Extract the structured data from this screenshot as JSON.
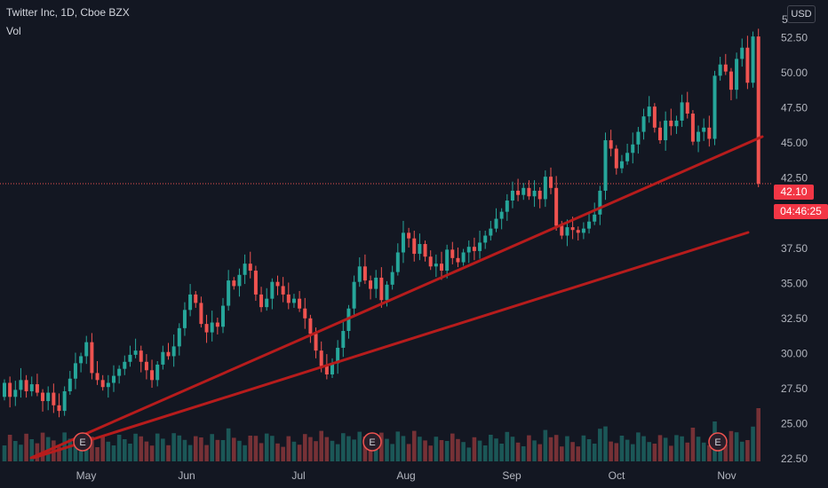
{
  "header": {
    "title": "Twitter Inc, 1D, Cboe BZX",
    "volume_label": "Vol"
  },
  "price_scale": {
    "currency": "USD",
    "top_partial_label": "5",
    "last_price": "42.10",
    "countdown": "04:46:25"
  },
  "colors": {
    "up": "#26a69a",
    "down": "#ef5350",
    "trendline": "#b71c1c",
    "price_tag": "#f23645"
  },
  "events": [
    {
      "label": "E",
      "date": "2021-04-29"
    },
    {
      "label": "E",
      "date": "2021-07-22"
    },
    {
      "label": "E",
      "date": "2021-10-26"
    }
  ],
  "chart_data": {
    "type": "candlestick",
    "title": "Twitter Inc, 1D, Cboe BZX",
    "x_tick_labels": [
      "May",
      "Jun",
      "Jul",
      "Aug",
      "Sep",
      "Oct",
      "Nov"
    ],
    "y_tick_labels": [
      "22.50",
      "25.00",
      "27.50",
      "30.00",
      "32.50",
      "35.00",
      "37.50",
      "40.00",
      "42.50",
      "45.00",
      "47.50",
      "50.00",
      "52.50"
    ],
    "ylim": [
      22.3,
      55.2
    ],
    "grid": false,
    "last_price": 42.1,
    "candles_close": [
      27.9,
      26.9,
      27.4,
      28.1,
      27.3,
      27.8,
      27.2,
      26.6,
      27.2,
      26.3,
      25.9,
      27.3,
      28.2,
      29.3,
      29.8,
      30.8,
      28.6,
      28.1,
      27.6,
      27.9,
      28.4,
      28.9,
      29.4,
      29.9,
      30.2,
      29.4,
      28.8,
      28.1,
      29.2,
      30.1,
      29.8,
      30.5,
      31.8,
      33.1,
      34.2,
      33.6,
      32.1,
      31.5,
      32.2,
      31.9,
      33.4,
      35.2,
      34.8,
      35.6,
      36.4,
      35.9,
      34.2,
      33.3,
      33.9,
      35.1,
      34.8,
      34.2,
      33.6,
      33.9,
      33.2,
      32.5,
      31.4,
      30.2,
      29.1,
      28.5,
      29.3,
      30.4,
      31.6,
      33.2,
      35.1,
      36.2,
      35.2,
      34.6,
      35.4,
      33.8,
      34.9,
      35.8,
      37.2,
      38.6,
      38.2,
      37.1,
      37.8,
      36.9,
      36.2,
      36.4,
      35.9,
      37.4,
      36.8,
      36.5,
      37.2,
      37.6,
      37.3,
      37.9,
      38.4,
      38.9,
      39.6,
      40.1,
      40.9,
      41.6,
      41.3,
      41.8,
      41.2,
      41.6,
      41.0,
      42.6,
      41.8,
      39.1,
      38.4,
      39.0,
      38.8,
      38.6,
      38.9,
      39.4,
      39.9,
      41.6,
      45.2,
      44.6,
      43.2,
      43.7,
      44.3,
      44.9,
      45.8,
      46.9,
      47.6,
      46.1,
      45.2,
      46.6,
      46.2,
      46.6,
      47.9,
      47.1,
      45.1,
      45.8,
      46.1,
      45.3,
      49.8,
      50.6,
      50.1,
      48.8,
      51.0,
      51.8,
      49.3,
      52.6,
      42.1
    ]
  }
}
